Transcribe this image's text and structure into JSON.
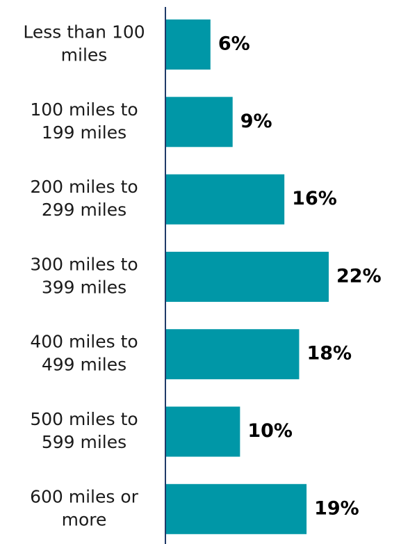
{
  "chart_data": {
    "type": "bar",
    "orientation": "horizontal",
    "categories": [
      [
        "Less than 100",
        "miles"
      ],
      [
        "100 miles to",
        "199 miles"
      ],
      [
        "200 miles to",
        "299 miles"
      ],
      [
        "300 miles to",
        "399 miles"
      ],
      [
        "400 miles to",
        "499 miles"
      ],
      [
        "500 miles to",
        "599 miles"
      ],
      [
        "600 miles or",
        "more"
      ]
    ],
    "values": [
      6,
      9,
      16,
      22,
      18,
      10,
      19
    ],
    "value_labels": [
      "6%",
      "9%",
      "16%",
      "22%",
      "18%",
      "10%",
      "19%"
    ],
    "unit": "%",
    "xlim": [
      0,
      22
    ],
    "grid": false,
    "legend": "none",
    "colors": {
      "bar": "#0097a7",
      "axis": "#1f3a68"
    }
  }
}
